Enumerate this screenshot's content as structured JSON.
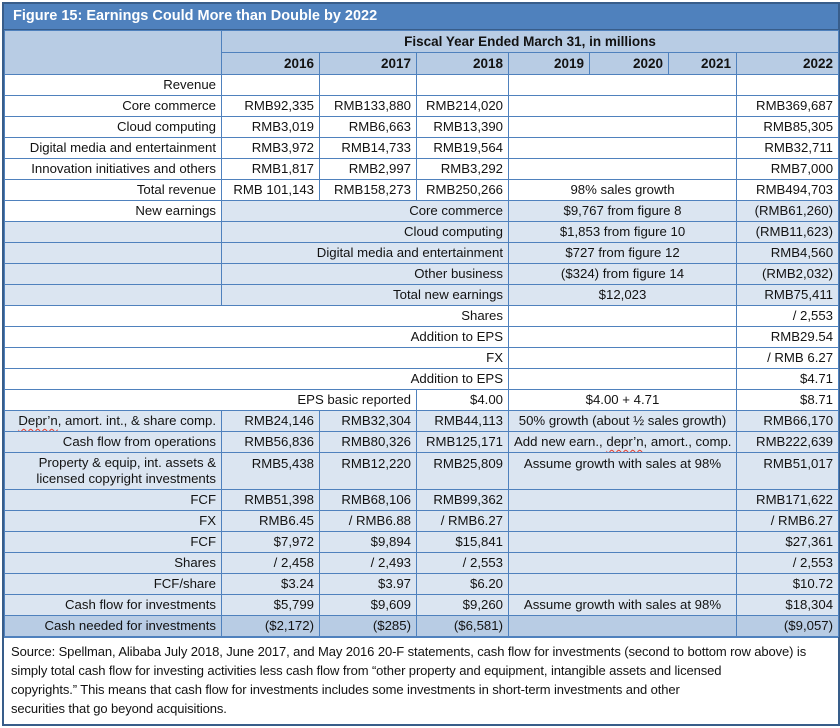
{
  "colors": {
    "title_bg": "#4f81bd",
    "band_bg": "#b8cce4",
    "light_row_bg": "#dbe5f1",
    "border": "#4f81bd",
    "frame_border": "#385d8a",
    "squiggle": "#e23b2e"
  },
  "table": {
    "title": "Figure 15: Earnings Could More than Double by 2022",
    "fiscal_header": "Fiscal Year Ended March 31, in millions",
    "years": [
      "2016",
      "2017",
      "2018",
      "2019",
      "2020",
      "2021",
      "2022"
    ],
    "rows": [
      {
        "cells": [
          {
            "t": "",
            "rs": 2,
            "bg": "bd",
            "n": "corner-cell"
          },
          {
            "t": "Fiscal Year Ended March 31, in millions",
            "s": 7,
            "bg": "bd",
            "b": 1,
            "a": "c",
            "n": "fiscal-year-header"
          }
        ]
      },
      {
        "cells": [
          {
            "t": "2016",
            "bg": "bd",
            "b": 1,
            "n": "year-header"
          },
          {
            "t": "2017",
            "bg": "bd",
            "b": 1,
            "n": "year-header"
          },
          {
            "t": "2018",
            "bg": "bd",
            "b": 1,
            "n": "year-header"
          },
          {
            "t": "2019",
            "bg": "bd",
            "b": 1,
            "n": "year-header"
          },
          {
            "t": "2020",
            "bg": "bd",
            "b": 1,
            "n": "year-header"
          },
          {
            "t": "2021",
            "bg": "bd",
            "b": 1,
            "n": "year-header"
          },
          {
            "t": "2022",
            "bg": "bd",
            "b": 1,
            "n": "year-header"
          }
        ]
      },
      {
        "cells": [
          {
            "t": "Revenue",
            "n": "row-label"
          },
          {},
          {},
          {},
          {
            "s": 3
          },
          {}
        ]
      },
      {
        "cells": [
          {
            "t": "Core commerce",
            "n": "row-label"
          },
          {
            "t": "RMB92,335"
          },
          {
            "t": "RMB133,880"
          },
          {
            "t": "RMB214,020"
          },
          {
            "s": 3
          },
          {
            "t": "RMB369,687"
          }
        ]
      },
      {
        "cells": [
          {
            "t": "Cloud computing",
            "n": "row-label"
          },
          {
            "t": "RMB3,019"
          },
          {
            "t": "RMB6,663"
          },
          {
            "t": "RMB13,390"
          },
          {
            "s": 3
          },
          {
            "t": "RMB85,305"
          }
        ]
      },
      {
        "cells": [
          {
            "t": "Digital media and entertainment",
            "n": "row-label"
          },
          {
            "t": "RMB3,972"
          },
          {
            "t": "RMB14,733"
          },
          {
            "t": "RMB19,564"
          },
          {
            "s": 3
          },
          {
            "t": "RMB32,711"
          }
        ]
      },
      {
        "cells": [
          {
            "t": "Innovation initiatives and others",
            "n": "row-label"
          },
          {
            "t": "RMB1,817"
          },
          {
            "t": "RMB2,997"
          },
          {
            "t": "RMB3,292"
          },
          {
            "s": 3
          },
          {
            "t": "RMB7,000"
          }
        ]
      },
      {
        "cells": [
          {
            "t": "Total revenue",
            "n": "row-label"
          },
          {
            "t": "RMB 101,143"
          },
          {
            "t": "RMB158,273"
          },
          {
            "t": "RMB250,266"
          },
          {
            "t": "98% sales growth",
            "s": 3,
            "a": "c",
            "n": "note-cell"
          },
          {
            "t": "RMB494,703"
          }
        ]
      },
      {
        "cells": [
          {
            "t": "New earnings",
            "n": "row-label"
          },
          {
            "t": "Core commerce",
            "s": 3,
            "bg": "lt"
          },
          {
            "t": "$9,767 from figure 8",
            "s": 3,
            "a": "c",
            "bg": "lt",
            "n": "note-cell"
          },
          {
            "t": "(RMB61,260)",
            "bg": "lt"
          }
        ]
      },
      {
        "cells": [
          {
            "bg": "lt"
          },
          {
            "t": "Cloud computing",
            "s": 3,
            "bg": "lt"
          },
          {
            "t": "$1,853 from figure 10",
            "s": 3,
            "a": "c",
            "bg": "lt",
            "n": "note-cell"
          },
          {
            "t": "(RMB11,623)",
            "bg": "lt"
          }
        ]
      },
      {
        "cells": [
          {
            "bg": "lt"
          },
          {
            "t": "Digital media and entertainment",
            "s": 3,
            "bg": "lt"
          },
          {
            "t": "$727 from figure 12",
            "s": 3,
            "a": "c",
            "bg": "lt",
            "n": "note-cell"
          },
          {
            "t": "RMB4,560",
            "bg": "lt"
          }
        ]
      },
      {
        "cells": [
          {
            "bg": "lt"
          },
          {
            "t": "Other business",
            "s": 3,
            "bg": "lt"
          },
          {
            "t": "($324) from figure 14",
            "s": 3,
            "a": "c",
            "bg": "lt",
            "n": "note-cell"
          },
          {
            "t": "(RMB2,032)",
            "bg": "lt"
          }
        ]
      },
      {
        "cells": [
          {
            "bg": "lt"
          },
          {
            "t": "Total new earnings",
            "s": 3,
            "bg": "lt"
          },
          {
            "t": "$12,023",
            "s": 3,
            "a": "c",
            "bg": "lt",
            "n": "note-cell"
          },
          {
            "t": "RMB75,411",
            "bg": "lt"
          }
        ]
      },
      {
        "cells": [
          {
            "t": "Shares",
            "s": 4,
            "n": "row-label"
          },
          {
            "s": 3
          },
          {
            "t": "/ 2,553"
          }
        ]
      },
      {
        "cells": [
          {
            "t": "Addition to EPS",
            "s": 4,
            "n": "row-label"
          },
          {
            "s": 3
          },
          {
            "t": "RMB29.54"
          }
        ]
      },
      {
        "cells": [
          {
            "t": "FX",
            "s": 4,
            "n": "row-label"
          },
          {
            "s": 3
          },
          {
            "t": "/ RMB 6.27"
          }
        ]
      },
      {
        "cells": [
          {
            "t": "Addition to EPS",
            "s": 4,
            "n": "row-label"
          },
          {
            "s": 3
          },
          {
            "t": "$4.71"
          }
        ]
      },
      {
        "cells": [
          {
            "t": "EPS basic reported",
            "s": 3,
            "n": "row-label"
          },
          {
            "t": "$4.00"
          },
          {
            "t": "$4.00 + 4.71",
            "s": 3,
            "a": "c",
            "n": "note-cell"
          },
          {
            "t": "$8.71"
          }
        ]
      },
      {
        "cells": [
          {
            "parts": [
              {
                "t": "Depr’n",
                "w": 1
              },
              {
                "t": ", amort. int., & share comp."
              }
            ],
            "bg": "lt",
            "n": "row-label"
          },
          {
            "t": "RMB24,146",
            "bg": "lt"
          },
          {
            "t": "RMB32,304",
            "bg": "lt"
          },
          {
            "t": "RMB44,113",
            "bg": "lt"
          },
          {
            "t": "50% growth (about ½ sales growth)",
            "s": 3,
            "a": "c",
            "bg": "lt",
            "n": "note-cell"
          },
          {
            "t": "RMB66,170",
            "bg": "lt"
          }
        ]
      },
      {
        "cells": [
          {
            "t": "Cash flow from operations",
            "bg": "lt",
            "n": "row-label"
          },
          {
            "t": "RMB56,836",
            "bg": "lt"
          },
          {
            "t": "RMB80,326",
            "bg": "lt"
          },
          {
            "t": "RMB125,171",
            "bg": "lt"
          },
          {
            "parts": [
              {
                "t": "Add new earn., "
              },
              {
                "t": "depr’n",
                "w": 1
              },
              {
                "t": ", amort., comp."
              }
            ],
            "s": 3,
            "a": "c",
            "bg": "lt",
            "n": "note-cell"
          },
          {
            "t": "RMB222,639",
            "bg": "lt"
          }
        ]
      },
      {
        "cells": [
          {
            "t": "Property & equip, int. assets & licensed copyright investments",
            "bg": "lt",
            "wrap": 1,
            "n": "row-label"
          },
          {
            "t": "RMB5,438",
            "bg": "lt",
            "va": 1
          },
          {
            "t": "RMB12,220",
            "bg": "lt",
            "va": 1
          },
          {
            "t": "RMB25,809",
            "bg": "lt",
            "va": 1
          },
          {
            "t": "Assume growth with sales at 98%",
            "s": 3,
            "a": "c",
            "bg": "lt",
            "va": 1,
            "n": "note-cell"
          },
          {
            "t": "RMB51,017",
            "bg": "lt",
            "va": 1
          }
        ]
      },
      {
        "cells": [
          {
            "t": "FCF",
            "bg": "lt",
            "n": "row-label"
          },
          {
            "t": "RMB51,398",
            "bg": "lt"
          },
          {
            "t": "RMB68,106",
            "bg": "lt"
          },
          {
            "t": "RMB99,362",
            "bg": "lt"
          },
          {
            "s": 3,
            "bg": "lt"
          },
          {
            "t": "RMB171,622",
            "bg": "lt"
          }
        ]
      },
      {
        "cells": [
          {
            "t": "FX",
            "bg": "lt",
            "n": "row-label"
          },
          {
            "t": "RMB6.45",
            "bg": "lt"
          },
          {
            "t": "/ RMB6.88",
            "bg": "lt"
          },
          {
            "t": "/ RMB6.27",
            "bg": "lt"
          },
          {
            "s": 3,
            "bg": "lt"
          },
          {
            "t": "/ RMB6.27",
            "bg": "lt"
          }
        ]
      },
      {
        "cells": [
          {
            "t": "FCF",
            "bg": "lt",
            "n": "row-label"
          },
          {
            "t": "$7,972",
            "bg": "lt"
          },
          {
            "t": "$9,894",
            "bg": "lt"
          },
          {
            "t": "$15,841",
            "bg": "lt"
          },
          {
            "s": 3,
            "bg": "lt"
          },
          {
            "t": "$27,361",
            "bg": "lt"
          }
        ]
      },
      {
        "cells": [
          {
            "t": "Shares",
            "bg": "lt",
            "n": "row-label"
          },
          {
            "t": "/ 2,458",
            "bg": "lt"
          },
          {
            "t": "/ 2,493",
            "bg": "lt"
          },
          {
            "t": "/ 2,553",
            "bg": "lt"
          },
          {
            "s": 3,
            "bg": "lt"
          },
          {
            "t": "/ 2,553",
            "bg": "lt"
          }
        ]
      },
      {
        "cells": [
          {
            "t": "FCF/share",
            "bg": "lt",
            "n": "row-label"
          },
          {
            "t": "$3.24",
            "bg": "lt"
          },
          {
            "t": "$3.97",
            "bg": "lt"
          },
          {
            "t": "$6.20",
            "bg": "lt"
          },
          {
            "s": 3,
            "bg": "lt"
          },
          {
            "t": "$10.72",
            "bg": "lt"
          }
        ]
      },
      {
        "cells": [
          {
            "t": "Cash flow for investments",
            "bg": "lt",
            "n": "row-label"
          },
          {
            "t": "$5,799",
            "bg": "lt"
          },
          {
            "t": "$9,609",
            "bg": "lt"
          },
          {
            "t": "$9,260",
            "bg": "lt"
          },
          {
            "t": "Assume growth with sales at 98%",
            "s": 3,
            "a": "c",
            "bg": "lt",
            "n": "note-cell"
          },
          {
            "t": "$18,304",
            "bg": "lt"
          }
        ]
      },
      {
        "cells": [
          {
            "t": "Cash needed for investments",
            "bg": "bd",
            "n": "row-label"
          },
          {
            "t": "($2,172)",
            "bg": "bd"
          },
          {
            "t": "($285)",
            "bg": "bd"
          },
          {
            "t": "($6,581)",
            "bg": "bd"
          },
          {
            "s": 3,
            "bg": "bd"
          },
          {
            "t": "($9,057)",
            "bg": "bd"
          }
        ]
      }
    ]
  },
  "source_note_lines": [
    "Source: Spellman, Alibaba July 2018, June 2017, and May 2016 20-F statements, cash flow for investments (second to bottom row above) is",
    "simply total cash flow for investing activities less cash flow from “other property and equipment, intangible assets and licensed",
    "copyrights.” This means that cash flow for investments includes some investments in short-term investments and other",
    "securities that go beyond acquisitions."
  ]
}
